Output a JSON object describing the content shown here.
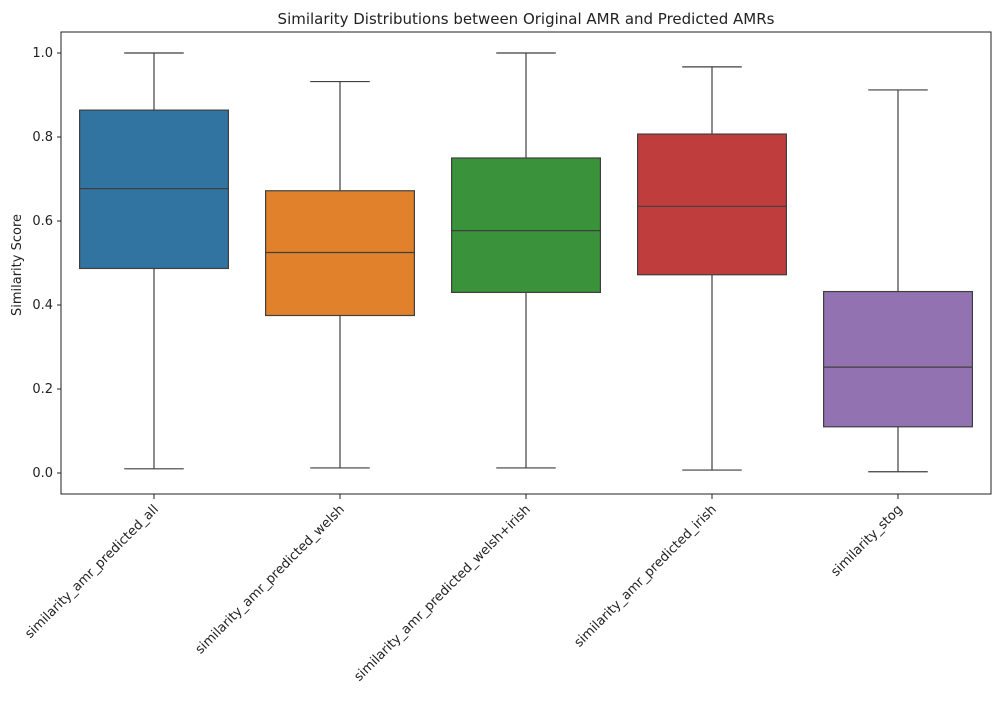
{
  "chart_data": {
    "type": "box",
    "title": "Similarity Distributions between Original AMR and Predicted AMRs",
    "xlabel": "",
    "ylabel": "Similarity Score",
    "ylim": [
      -0.05,
      1.05
    ],
    "yticks": [
      0.0,
      0.2,
      0.4,
      0.6,
      0.8,
      1.0
    ],
    "ytick_labels": [
      "0.0",
      "0.2",
      "0.4",
      "0.6",
      "0.8",
      "1.0"
    ],
    "xtick_rotation": 45,
    "grid": false,
    "categories": [
      "similarity_amr_predicted_all",
      "similarity_amr_predicted_welsh",
      "similarity_amr_predicted_welsh+irish",
      "similarity_amr_predicted_irish",
      "similarity_stog"
    ],
    "boxes": [
      {
        "name": "similarity_amr_predicted_all",
        "color": "#3274a1",
        "whisker_low": 0.01,
        "q1": 0.487,
        "median": 0.677,
        "q3": 0.864,
        "whisker_high": 1.0
      },
      {
        "name": "similarity_amr_predicted_welsh",
        "color": "#e1812c",
        "whisker_low": 0.012,
        "q1": 0.375,
        "median": 0.525,
        "q3": 0.672,
        "whisker_high": 0.932
      },
      {
        "name": "similarity_amr_predicted_welsh+irish",
        "color": "#3a923a",
        "whisker_low": 0.012,
        "q1": 0.43,
        "median": 0.577,
        "q3": 0.75,
        "whisker_high": 1.0
      },
      {
        "name": "similarity_amr_predicted_irish",
        "color": "#c03d3e",
        "whisker_low": 0.007,
        "q1": 0.472,
        "median": 0.635,
        "q3": 0.807,
        "whisker_high": 0.967
      },
      {
        "name": "similarity_stog",
        "color": "#9372b2",
        "whisker_low": 0.003,
        "q1": 0.11,
        "median": 0.252,
        "q3": 0.432,
        "whisker_high": 0.912
      }
    ]
  }
}
